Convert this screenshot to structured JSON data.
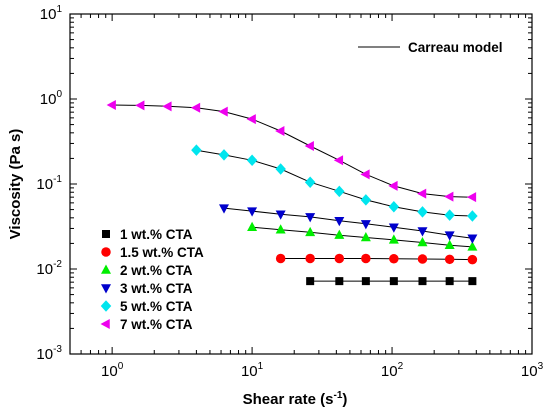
{
  "chart_data": {
    "type": "scatter",
    "xlabel": "Shear rate (s",
    "xlabel_sup": "-1",
    "xlabel_tail": ")",
    "ylabel": "Viscosity (Pa s)",
    "xscale": "log",
    "yscale": "log",
    "xlim": [
      0.5,
      1000
    ],
    "ylim": [
      0.001,
      10
    ],
    "x_ticks": [
      {
        "value": 1,
        "base": "10",
        "exp": "0"
      },
      {
        "value": 10,
        "base": "10",
        "exp": "1"
      },
      {
        "value": 100,
        "base": "10",
        "exp": "2"
      },
      {
        "value": 1000,
        "base": "10",
        "exp": "3"
      }
    ],
    "y_ticks": [
      {
        "value": 0.001,
        "base": "10",
        "exp": "-3"
      },
      {
        "value": 0.01,
        "base": "10",
        "exp": "-2"
      },
      {
        "value": 0.1,
        "base": "10",
        "exp": "-1"
      },
      {
        "value": 1,
        "base": "10",
        "exp": "0"
      },
      {
        "value": 10,
        "base": "10",
        "exp": "1"
      }
    ],
    "grid": false,
    "fit_line_label": "Carreau model",
    "legend_position": "bottom-left",
    "series": [
      {
        "name": "1 wt.% CTA",
        "marker": "square",
        "color": "#000000",
        "x": [
          26,
          42,
          65,
          103,
          165,
          258,
          375
        ],
        "y": [
          0.0072,
          0.0072,
          0.0072,
          0.0072,
          0.0072,
          0.0072,
          0.0072
        ]
      },
      {
        "name": "1.5 wt.% CTA",
        "marker": "circle",
        "color": "#ff0000",
        "x": [
          16,
          26,
          42,
          65,
          103,
          165,
          258,
          375
        ],
        "y": [
          0.0133,
          0.0133,
          0.0133,
          0.0133,
          0.0132,
          0.0131,
          0.013,
          0.0129
        ]
      },
      {
        "name": "2 wt.% CTA",
        "marker": "triangle-up",
        "color": "#00ee00",
        "x": [
          10,
          16,
          26,
          42,
          65,
          103,
          165,
          258,
          375
        ],
        "y": [
          0.031,
          0.029,
          0.027,
          0.025,
          0.0235,
          0.022,
          0.0205,
          0.019,
          0.0182
        ]
      },
      {
        "name": "3 wt.% CTA",
        "marker": "triangle-down",
        "color": "#0000cc",
        "x": [
          6.3,
          10,
          16,
          26,
          42,
          65,
          103,
          165,
          258,
          375
        ],
        "y": [
          0.052,
          0.048,
          0.044,
          0.041,
          0.037,
          0.034,
          0.031,
          0.028,
          0.025,
          0.023
        ]
      },
      {
        "name": "5 wt.% CTA",
        "marker": "diamond",
        "color": "#00e5ee",
        "x": [
          4,
          6.3,
          10,
          16,
          26,
          42,
          65,
          103,
          165,
          258,
          375
        ],
        "y": [
          0.25,
          0.22,
          0.19,
          0.15,
          0.105,
          0.082,
          0.065,
          0.054,
          0.047,
          0.043,
          0.042
        ]
      },
      {
        "name": "7 wt.% CTA",
        "marker": "triangle-left",
        "color": "#ee00ee",
        "x": [
          1,
          1.6,
          2.5,
          4,
          6.3,
          10,
          16,
          26,
          42,
          65,
          103,
          165,
          258,
          375
        ],
        "y": [
          0.85,
          0.84,
          0.82,
          0.79,
          0.71,
          0.58,
          0.42,
          0.28,
          0.19,
          0.13,
          0.095,
          0.077,
          0.071,
          0.07
        ]
      }
    ]
  }
}
